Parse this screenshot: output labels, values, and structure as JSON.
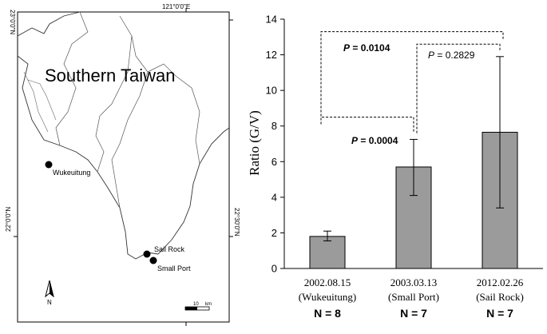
{
  "map": {
    "title": "Southern Taiwan",
    "longitude_label": "121°0'0\"E",
    "lat_label_top": "23°0'0\"N",
    "lat_label_mid": "22°30'0\"N",
    "lat_label_bottom": "22°0'0\"N",
    "north_label": "N",
    "scale_label": "10",
    "scale_unit": "km",
    "sites": [
      {
        "name": "Wukeuitung"
      },
      {
        "name": "Sail Rock"
      },
      {
        "name": "Small Port"
      }
    ]
  },
  "chart_data": {
    "type": "bar",
    "ylabel": "Ratio (G/V)",
    "ylim": [
      0,
      14
    ],
    "yticks": [
      "0",
      "2",
      "4",
      "6",
      "8",
      "10",
      "12",
      "14"
    ],
    "categories": [
      "2002.08.15",
      "2003.03.13",
      "2012.02.26"
    ],
    "sublabels": [
      "(Wukeuitung)",
      "(Small Port)",
      "(Sail Rock)"
    ],
    "n_labels": [
      "N = 8",
      "N = 7",
      "N = 7"
    ],
    "values": [
      1.8,
      5.7,
      7.65
    ],
    "err_low": [
      1.55,
      4.1,
      3.4
    ],
    "err_high": [
      2.1,
      7.25,
      11.9
    ],
    "bar_color": "#9b9b9b",
    "annotations": [
      {
        "prefix": "P",
        "text": " = 0.0004",
        "bold": true
      },
      {
        "prefix": "P",
        "text": " = 0.0104",
        "bold": true
      },
      {
        "prefix": "P",
        "text": " = 0.2829",
        "bold": false
      }
    ]
  }
}
